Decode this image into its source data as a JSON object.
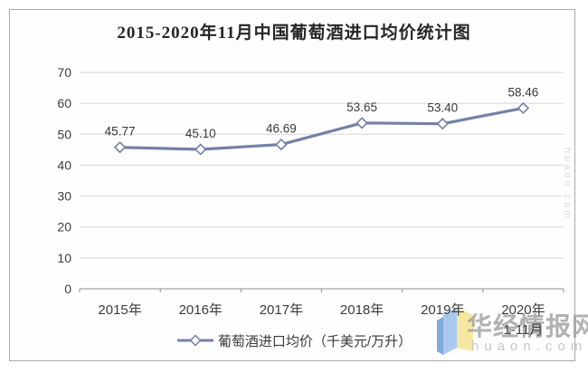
{
  "chart_data": {
    "type": "line",
    "title": "2015-2020年11月中国葡萄酒进口均价统计图",
    "categories": [
      "2015年",
      "2016年",
      "2017年",
      "2018年",
      "2019年",
      "2020年"
    ],
    "sub_labels": {
      "5": "1-11月"
    },
    "series": [
      {
        "name": "葡萄酒进口均价（千美元/万升）",
        "values": [
          45.77,
          45.1,
          46.69,
          53.65,
          53.4,
          58.46
        ]
      }
    ],
    "data_labels": [
      "45.77",
      "45.10",
      "46.69",
      "53.65",
      "53.40",
      "58.46"
    ],
    "xlabel": "",
    "ylabel": "",
    "ylim": [
      0,
      70
    ],
    "y_ticks": [
      0,
      10,
      20,
      30,
      40,
      50,
      60,
      70
    ],
    "grid": true,
    "legend_position": "bottom",
    "line_color": "#7480a6",
    "marker": "hollow-diamond",
    "grid_color": "#d6d6d6",
    "axis_color": "#8c8c8c",
    "label_color": "#3c3c3c"
  },
  "watermark": {
    "brand_cn": "华经情报网",
    "brand_en": "huaon.com",
    "side_text": "huaon.com",
    "logo_blue": "#aac8ee",
    "logo_blue_dark": "#7fa8dc",
    "logo_yellow": "#f6e7a0"
  }
}
